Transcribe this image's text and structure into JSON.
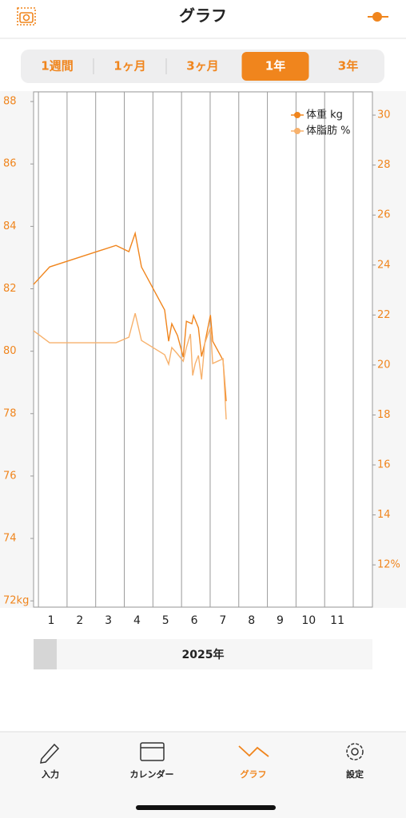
{
  "header": {
    "title": "グラフ"
  },
  "tabs": [
    "1週間",
    "1ヶ月",
    "3ヶ月",
    "1年",
    "3年"
  ],
  "chart_data": {
    "type": "line",
    "series": [
      {
        "name": "体重 kg",
        "color": "#f0851d",
        "axis": "y",
        "x": [
          0.83,
          1.39,
          3.71,
          4.16,
          4.38,
          4.6,
          5.41,
          5.55,
          5.66,
          5.86,
          6.06,
          6.17,
          6.36,
          6.42,
          6.59,
          6.7,
          6.81,
          7.01,
          7.09,
          7.45,
          7.56
        ],
        "values": [
          82.14,
          82.7,
          83.39,
          83.19,
          83.78,
          82.7,
          81.32,
          80.32,
          80.88,
          80.5,
          79.81,
          80.96,
          80.88,
          81.14,
          80.75,
          79.83,
          80.24,
          81.16,
          80.32,
          79.71,
          78.4
        ]
      },
      {
        "name": "体脂肪 %",
        "color": "#f7b16c",
        "axis": "y2",
        "x": [
          0.83,
          1.39,
          3.71,
          4.16,
          4.38,
          4.6,
          5.41,
          5.55,
          5.66,
          5.86,
          6.06,
          6.17,
          6.31,
          6.39,
          6.48,
          6.59,
          6.7,
          6.81,
          7.01,
          7.09,
          7.45,
          7.56
        ],
        "values": [
          21.37,
          20.89,
          20.89,
          21.11,
          22.07,
          20.98,
          20.41,
          20.03,
          20.7,
          20.44,
          20.15,
          20.7,
          21.24,
          19.58,
          20.06,
          20.38,
          19.42,
          20.86,
          21.5,
          20.06,
          20.25,
          17.82
        ]
      }
    ],
    "xlim": [
      0.83,
      12.67
    ],
    "xticks": [
      {
        "value": 1.5,
        "label": "1"
      },
      {
        "value": 2.5,
        "label": "2"
      },
      {
        "value": 3.5,
        "label": "3"
      },
      {
        "value": 4.5,
        "label": "4"
      },
      {
        "value": 5.5,
        "label": "5"
      },
      {
        "value": 6.5,
        "label": "6"
      },
      {
        "value": 7.5,
        "label": "7"
      },
      {
        "value": 8.5,
        "label": "8"
      },
      {
        "value": 9.5,
        "label": "9"
      },
      {
        "value": 10.5,
        "label": "10"
      },
      {
        "value": 11.5,
        "label": "11"
      }
    ],
    "xgrid": [
      1,
      2,
      3,
      4,
      5,
      6,
      7,
      8,
      9,
      10,
      11,
      12
    ],
    "ylim": [
      71.8,
      88.31
    ],
    "yticks": [
      88,
      86,
      84,
      82,
      80,
      78,
      76,
      74,
      {
        "value": 72,
        "label": "72kg"
      }
    ],
    "y2lim": [
      10.31,
      30.93
    ],
    "y2ticks": [
      30,
      28,
      26,
      24,
      22,
      20,
      18,
      16,
      14,
      {
        "value": 12,
        "label": "12%"
      }
    ],
    "legend": "top-right"
  },
  "year_label": "2025年",
  "nav": [
    "入力",
    "カレンダー",
    "グラフ",
    "設定"
  ]
}
